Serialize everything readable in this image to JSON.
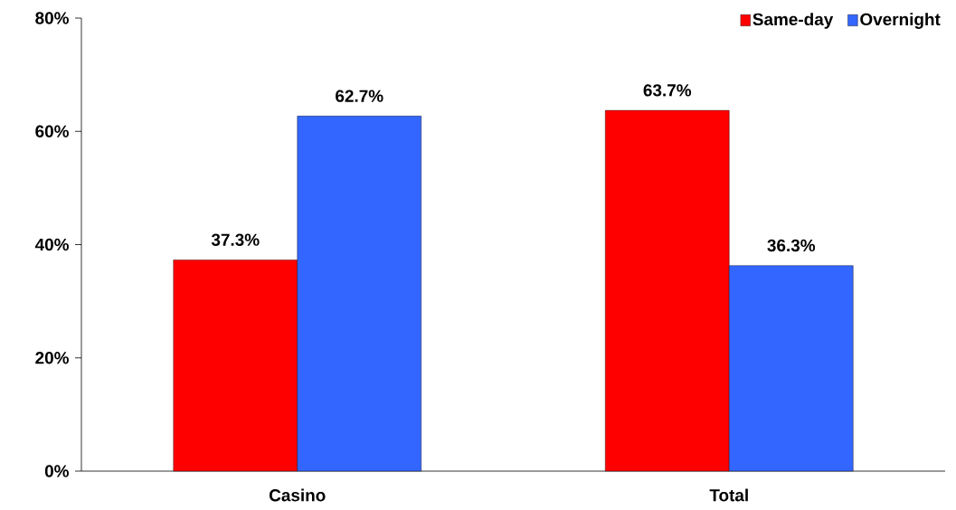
{
  "chart_data": {
    "type": "bar",
    "categories": [
      "Casino",
      "Total"
    ],
    "series": [
      {
        "name": "Same-day",
        "color": "#ff0000",
        "values": [
          37.3,
          63.7
        ],
        "value_labels": [
          "37.3%",
          "63.7%"
        ]
      },
      {
        "name": "Overnight",
        "color": "#3366ff",
        "values": [
          62.7,
          36.3
        ],
        "value_labels": [
          "62.7%",
          "36.3%"
        ]
      }
    ],
    "ylim": [
      0,
      80
    ],
    "yticks": [
      {
        "value": 0,
        "label": "0%"
      },
      {
        "value": 20,
        "label": "20%"
      },
      {
        "value": 40,
        "label": "40%"
      },
      {
        "value": 60,
        "label": "60%"
      },
      {
        "value": 80,
        "label": "80%"
      }
    ],
    "grid": false,
    "legend": "top right"
  }
}
